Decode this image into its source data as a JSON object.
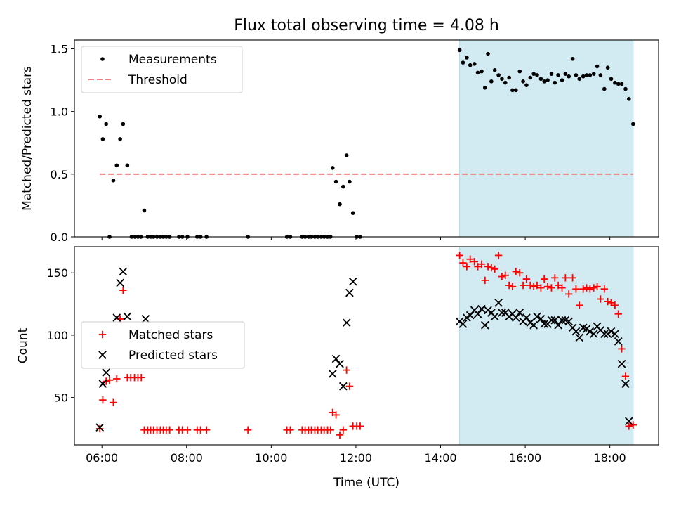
{
  "title": "Flux total observing time = 4.08 h",
  "x_axis": {
    "label": "Time (UTC)",
    "unit": "hours",
    "range": [
      5.35,
      19.15
    ],
    "ticks": [
      6,
      8,
      10,
      12,
      14,
      16,
      18
    ],
    "tick_labels": [
      "06:00",
      "08:00",
      "10:00",
      "12:00",
      "14:00",
      "16:00",
      "18:00"
    ]
  },
  "chart_data": [
    {
      "type": "scatter",
      "panel": "top",
      "ylabel": "Matched/Predicted stars",
      "ylim": [
        0,
        1.57
      ],
      "yticks": [
        0.0,
        0.5,
        1.0,
        1.5
      ],
      "ytick_labels": [
        "0.0",
        "0.5",
        "1.0",
        "1.5"
      ],
      "legend_position": "upper-left",
      "shaded_span": {
        "x_start": 14.45,
        "x_end": 18.55,
        "color": "#add8e6"
      },
      "threshold": {
        "name": "Threshold",
        "y": 0.5,
        "x_start": 5.95,
        "x_end": 18.55,
        "color": "#f08080"
      },
      "series": [
        {
          "name": "Measurements",
          "color": "#000000",
          "marker": "dot",
          "points": [
            [
              5.95,
              0.96
            ],
            [
              6.02,
              0.78
            ],
            [
              6.1,
              0.9
            ],
            [
              6.18,
              0.0
            ],
            [
              6.27,
              0.45
            ],
            [
              6.35,
              0.57
            ],
            [
              6.43,
              0.78
            ],
            [
              6.5,
              0.9
            ],
            [
              6.6,
              0.57
            ],
            [
              6.7,
              0.0
            ],
            [
              6.78,
              0.0
            ],
            [
              6.85,
              0.0
            ],
            [
              6.92,
              0.0
            ],
            [
              7.0,
              0.21
            ],
            [
              7.08,
              0.0
            ],
            [
              7.15,
              0.0
            ],
            [
              7.22,
              0.0
            ],
            [
              7.3,
              0.0
            ],
            [
              7.38,
              0.0
            ],
            [
              7.45,
              0.0
            ],
            [
              7.52,
              0.0
            ],
            [
              7.6,
              0.0
            ],
            [
              7.82,
              0.0
            ],
            [
              7.9,
              0.0
            ],
            [
              8.02,
              0.0
            ],
            [
              8.25,
              0.0
            ],
            [
              8.33,
              0.0
            ],
            [
              8.47,
              0.0
            ],
            [
              9.45,
              0.0
            ],
            [
              10.37,
              0.0
            ],
            [
              10.45,
              0.0
            ],
            [
              10.73,
              0.0
            ],
            [
              10.8,
              0.0
            ],
            [
              10.88,
              0.0
            ],
            [
              10.95,
              0.0
            ],
            [
              11.03,
              0.0
            ],
            [
              11.1,
              0.0
            ],
            [
              11.18,
              0.0
            ],
            [
              11.25,
              0.0
            ],
            [
              11.33,
              0.0
            ],
            [
              11.4,
              0.0
            ],
            [
              11.45,
              0.55
            ],
            [
              11.53,
              0.44
            ],
            [
              11.62,
              0.26
            ],
            [
              11.7,
              0.4
            ],
            [
              11.78,
              0.65
            ],
            [
              11.85,
              0.44
            ],
            [
              11.93,
              0.19
            ],
            [
              12.02,
              0.0
            ],
            [
              12.1,
              0.0
            ],
            [
              14.45,
              1.49
            ],
            [
              14.53,
              1.39
            ],
            [
              14.62,
              1.43
            ],
            [
              14.7,
              1.37
            ],
            [
              14.8,
              1.38
            ],
            [
              14.88,
              1.31
            ],
            [
              14.97,
              1.32
            ],
            [
              15.05,
              1.19
            ],
            [
              15.12,
              1.46
            ],
            [
              15.2,
              1.24
            ],
            [
              15.28,
              1.33
            ],
            [
              15.37,
              1.29
            ],
            [
              15.45,
              1.26
            ],
            [
              15.53,
              1.23
            ],
            [
              15.62,
              1.27
            ],
            [
              15.7,
              1.17
            ],
            [
              15.78,
              1.17
            ],
            [
              15.87,
              1.32
            ],
            [
              15.95,
              1.24
            ],
            [
              16.03,
              1.21
            ],
            [
              16.12,
              1.27
            ],
            [
              16.2,
              1.3
            ],
            [
              16.28,
              1.29
            ],
            [
              16.37,
              1.26
            ],
            [
              16.45,
              1.24
            ],
            [
              16.53,
              1.25
            ],
            [
              16.62,
              1.3
            ],
            [
              16.7,
              1.23
            ],
            [
              16.78,
              1.29
            ],
            [
              16.87,
              1.25
            ],
            [
              16.95,
              1.3
            ],
            [
              17.03,
              1.28
            ],
            [
              17.12,
              1.42
            ],
            [
              17.2,
              1.29
            ],
            [
              17.28,
              1.26
            ],
            [
              17.37,
              1.28
            ],
            [
              17.45,
              1.29
            ],
            [
              17.53,
              1.29
            ],
            [
              17.62,
              1.3
            ],
            [
              17.7,
              1.36
            ],
            [
              17.78,
              1.29
            ],
            [
              17.87,
              1.18
            ],
            [
              17.95,
              1.35
            ],
            [
              18.03,
              1.26
            ],
            [
              18.12,
              1.23
            ],
            [
              18.2,
              1.22
            ],
            [
              18.28,
              1.22
            ],
            [
              18.37,
              1.18
            ],
            [
              18.45,
              1.1
            ],
            [
              18.55,
              0.9
            ]
          ]
        }
      ]
    },
    {
      "type": "scatter",
      "panel": "bottom",
      "ylabel": "Count",
      "ylim": [
        12,
        171
      ],
      "yticks": [
        50,
        100,
        150
      ],
      "ytick_labels": [
        "50",
        "100",
        "150"
      ],
      "legend_position": "center-left",
      "shaded_span": {
        "x_start": 14.45,
        "x_end": 18.55,
        "color": "#add8e6"
      },
      "series": [
        {
          "name": "Matched stars",
          "color": "#ff0000",
          "marker": "plus",
          "points": [
            [
              5.95,
              25
            ],
            [
              6.02,
              48
            ],
            [
              6.1,
              63
            ],
            [
              6.18,
              64
            ],
            [
              6.27,
              46
            ],
            [
              6.35,
              65
            ],
            [
              6.43,
              113
            ],
            [
              6.5,
              136
            ],
            [
              6.6,
              66
            ],
            [
              6.68,
              66
            ],
            [
              6.77,
              66
            ],
            [
              6.85,
              66
            ],
            [
              6.93,
              66
            ],
            [
              7.0,
              24
            ],
            [
              7.08,
              24
            ],
            [
              7.15,
              24
            ],
            [
              7.22,
              24
            ],
            [
              7.3,
              24
            ],
            [
              7.38,
              24
            ],
            [
              7.45,
              24
            ],
            [
              7.52,
              24
            ],
            [
              7.6,
              24
            ],
            [
              7.82,
              24
            ],
            [
              7.9,
              24
            ],
            [
              8.02,
              24
            ],
            [
              8.25,
              24
            ],
            [
              8.33,
              24
            ],
            [
              8.47,
              24
            ],
            [
              9.45,
              24
            ],
            [
              10.37,
              24
            ],
            [
              10.45,
              24
            ],
            [
              10.73,
              24
            ],
            [
              10.8,
              24
            ],
            [
              10.88,
              24
            ],
            [
              10.95,
              24
            ],
            [
              11.03,
              24
            ],
            [
              11.1,
              24
            ],
            [
              11.18,
              24
            ],
            [
              11.25,
              24
            ],
            [
              11.33,
              24
            ],
            [
              11.4,
              24
            ],
            [
              11.45,
              38
            ],
            [
              11.53,
              36
            ],
            [
              11.62,
              20
            ],
            [
              11.7,
              24
            ],
            [
              11.78,
              72
            ],
            [
              11.85,
              59
            ],
            [
              11.93,
              27
            ],
            [
              12.02,
              27
            ],
            [
              12.1,
              27
            ],
            [
              14.45,
              164
            ],
            [
              14.53,
              158
            ],
            [
              14.62,
              155
            ],
            [
              14.7,
              161
            ],
            [
              14.8,
              159
            ],
            [
              14.88,
              155
            ],
            [
              14.97,
              157
            ],
            [
              15.05,
              144
            ],
            [
              15.12,
              155
            ],
            [
              15.2,
              154
            ],
            [
              15.28,
              153
            ],
            [
              15.37,
              164
            ],
            [
              15.45,
              147
            ],
            [
              15.53,
              148
            ],
            [
              15.62,
              140
            ],
            [
              15.7,
              139
            ],
            [
              15.78,
              151
            ],
            [
              15.87,
              150
            ],
            [
              15.95,
              140
            ],
            [
              16.03,
              145
            ],
            [
              16.12,
              140
            ],
            [
              16.2,
              139
            ],
            [
              16.28,
              140
            ],
            [
              16.37,
              138
            ],
            [
              16.45,
              145
            ],
            [
              16.53,
              139
            ],
            [
              16.62,
              138
            ],
            [
              16.7,
              146
            ],
            [
              16.78,
              140
            ],
            [
              16.87,
              138
            ],
            [
              16.95,
              146
            ],
            [
              17.03,
              133
            ],
            [
              17.12,
              146
            ],
            [
              17.2,
              137
            ],
            [
              17.28,
              124
            ],
            [
              17.37,
              137
            ],
            [
              17.45,
              138
            ],
            [
              17.53,
              137
            ],
            [
              17.62,
              138
            ],
            [
              17.7,
              139
            ],
            [
              17.78,
              129
            ],
            [
              17.87,
              137
            ],
            [
              17.95,
              127
            ],
            [
              18.03,
              126
            ],
            [
              18.12,
              124
            ],
            [
              18.2,
              117
            ],
            [
              18.28,
              89
            ],
            [
              18.37,
              67
            ],
            [
              18.45,
              27
            ],
            [
              18.55,
              28
            ]
          ]
        },
        {
          "name": "Predicted stars",
          "color": "#000000",
          "marker": "x",
          "points": [
            [
              5.95,
              26
            ],
            [
              6.02,
              61
            ],
            [
              6.1,
              70
            ],
            [
              6.35,
              114
            ],
            [
              6.43,
              142
            ],
            [
              6.5,
              151
            ],
            [
              6.6,
              115
            ],
            [
              7.03,
              113
            ],
            [
              11.45,
              69
            ],
            [
              11.53,
              81
            ],
            [
              11.62,
              77
            ],
            [
              11.7,
              59
            ],
            [
              11.78,
              110
            ],
            [
              11.85,
              134
            ],
            [
              11.93,
              143
            ],
            [
              14.45,
              111
            ],
            [
              14.53,
              109
            ],
            [
              14.62,
              114
            ],
            [
              14.7,
              116
            ],
            [
              14.8,
              120
            ],
            [
              14.88,
              117
            ],
            [
              14.97,
              121
            ],
            [
              15.05,
              108
            ],
            [
              15.12,
              120
            ],
            [
              15.2,
              118
            ],
            [
              15.28,
              115
            ],
            [
              15.37,
              126
            ],
            [
              15.45,
              118
            ],
            [
              15.53,
              118
            ],
            [
              15.62,
              115
            ],
            [
              15.7,
              117
            ],
            [
              15.78,
              114
            ],
            [
              15.87,
              118
            ],
            [
              15.95,
              111
            ],
            [
              16.03,
              114
            ],
            [
              16.12,
              110
            ],
            [
              16.2,
              108
            ],
            [
              16.28,
              115
            ],
            [
              16.37,
              113
            ],
            [
              16.45,
              109
            ],
            [
              16.53,
              109
            ],
            [
              16.62,
              112
            ],
            [
              16.7,
              112
            ],
            [
              16.78,
              108
            ],
            [
              16.87,
              112
            ],
            [
              16.95,
              112
            ],
            [
              17.03,
              111
            ],
            [
              17.12,
              106
            ],
            [
              17.2,
              103
            ],
            [
              17.28,
              98
            ],
            [
              17.37,
              106
            ],
            [
              17.45,
              105
            ],
            [
              17.53,
              103
            ],
            [
              17.62,
              101
            ],
            [
              17.7,
              107
            ],
            [
              17.78,
              104
            ],
            [
              17.87,
              101
            ],
            [
              17.95,
              101
            ],
            [
              18.03,
              103
            ],
            [
              18.12,
              101
            ],
            [
              18.2,
              95
            ],
            [
              18.28,
              77
            ],
            [
              18.37,
              61
            ],
            [
              18.45,
              31
            ]
          ]
        }
      ]
    }
  ]
}
